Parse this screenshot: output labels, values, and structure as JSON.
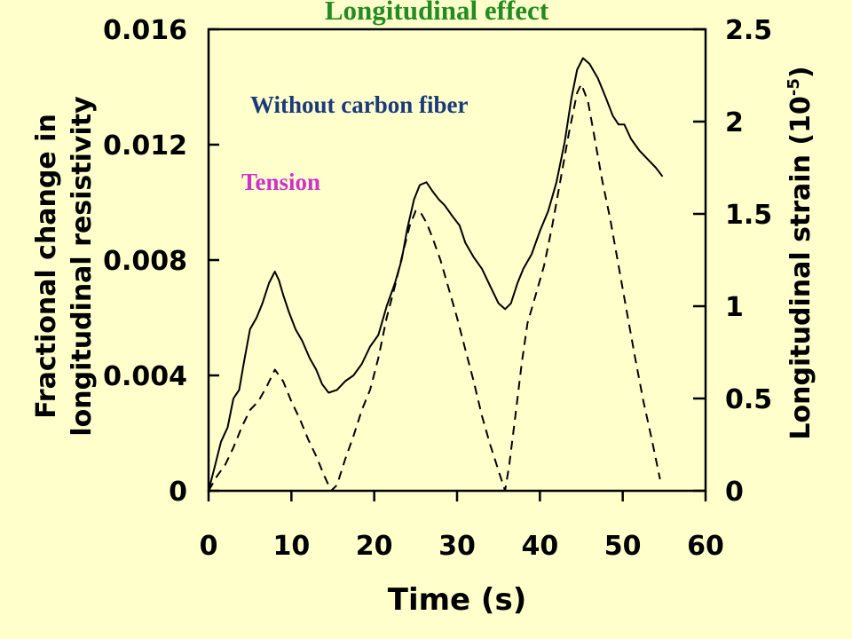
{
  "colors": {
    "background": "#ffffcc",
    "title": "#228b22",
    "subtitle": "#1a3a7a",
    "annotation": "#cc33cc",
    "ink": "#000000"
  },
  "chart_data": {
    "type": "line",
    "title": "Longitudinal effect",
    "subtitle": "Without carbon fiber",
    "annotation": "Tension",
    "xlabel": "Time (s)",
    "ylabel_left_line1": "Fractional change in",
    "ylabel_left_line2": "longitudinal resistivity",
    "ylabel_right_main": "Longitudinal strain (10",
    "ylabel_right_exp": "-5",
    "ylabel_right_close": ")",
    "xlim": [
      0,
      60
    ],
    "ylim_left": [
      0,
      0.016
    ],
    "ylim_right": [
      0,
      2.5
    ],
    "x_ticks": [
      0,
      10,
      20,
      30,
      40,
      50,
      60
    ],
    "x_tick_labels": [
      "0",
      "10",
      "20",
      "30",
      "40",
      "50",
      "60"
    ],
    "y_left_ticks": [
      0,
      0.004,
      0.008,
      0.012,
      0.016
    ],
    "y_left_tick_labels": [
      "0",
      "0.004",
      "0.008",
      "0.012",
      "0.016"
    ],
    "y_right_ticks": [
      0,
      0.5,
      1,
      1.5,
      2,
      2.5
    ],
    "y_right_tick_labels": [
      "0",
      "0.5",
      "1",
      "1.5",
      "2",
      "2.5"
    ],
    "grid": false,
    "series": [
      {
        "axis": "left",
        "style": "solid",
        "x": [
          0,
          0.8,
          1.5,
          2.3,
          3.0,
          3.7,
          4.3,
          5.0,
          5.8,
          6.5,
          7.3,
          8.0,
          8.5,
          9.0,
          9.7,
          10.5,
          11.3,
          12.2,
          13.0,
          13.7,
          14.5,
          15.5,
          16.5,
          17.5,
          18.5,
          19.5,
          20.5,
          21.5,
          22.5,
          23.3,
          24.0,
          24.8,
          25.5,
          26.3,
          27.0,
          27.8,
          28.5,
          29.5,
          30.3,
          31.0,
          32.0,
          33.0,
          34.0,
          35.0,
          35.8,
          36.5,
          37.3,
          38.0,
          39.0,
          40.0,
          41.0,
          42.0,
          43.0,
          43.8,
          44.5,
          45.2,
          46.0,
          47.0,
          48.0,
          48.8,
          49.5,
          50.2,
          51.0,
          52.0,
          53.0,
          54.0,
          54.8
        ],
        "values": [
          0,
          0.0009,
          0.0017,
          0.0022,
          0.0032,
          0.0035,
          0.0045,
          0.0056,
          0.006,
          0.0065,
          0.0072,
          0.0076,
          0.0073,
          0.0068,
          0.0062,
          0.0056,
          0.0052,
          0.0046,
          0.0042,
          0.0037,
          0.0034,
          0.0035,
          0.0038,
          0.004,
          0.0044,
          0.005,
          0.0054,
          0.0064,
          0.0072,
          0.008,
          0.0091,
          0.0101,
          0.0106,
          0.0107,
          0.0104,
          0.0101,
          0.0099,
          0.0095,
          0.0092,
          0.0086,
          0.0081,
          0.0077,
          0.0071,
          0.0065,
          0.0063,
          0.0065,
          0.0072,
          0.0077,
          0.0082,
          0.009,
          0.0097,
          0.0107,
          0.0121,
          0.0136,
          0.0146,
          0.015,
          0.0148,
          0.0143,
          0.0136,
          0.013,
          0.0127,
          0.0127,
          0.0122,
          0.0118,
          0.0115,
          0.0112,
          0.0109
        ]
      },
      {
        "axis": "left",
        "style": "dashed",
        "x": [
          0,
          1.0,
          2.0,
          3.0,
          4.0,
          5.0,
          6.0,
          7.0,
          8.0,
          9.0,
          10.0,
          11.0,
          12.0,
          13.0,
          14.0,
          14.8,
          15.5,
          16.5,
          17.5,
          18.5,
          19.5,
          20.5,
          21.5,
          22.5,
          23.5,
          24.3,
          25.0,
          25.5,
          26.3,
          27.0,
          28.0,
          29.0,
          30.0,
          31.0,
          32.0,
          33.0,
          34.0,
          35.0,
          35.8,
          36.3,
          37.0,
          37.8,
          38.5,
          39.5,
          40.5,
          41.5,
          42.5,
          43.5,
          44.5,
          45.0,
          45.8,
          46.5,
          47.5,
          48.5,
          49.5,
          50.5,
          51.5,
          52.5,
          53.5,
          54.5
        ],
        "values": [
          0,
          0.0005,
          0.0009,
          0.0015,
          0.0022,
          0.0028,
          0.0031,
          0.0036,
          0.0042,
          0.0038,
          0.0031,
          0.0025,
          0.0018,
          0.0012,
          0.0005,
          0,
          0.0002,
          0.0011,
          0.0019,
          0.0028,
          0.0035,
          0.0046,
          0.006,
          0.0071,
          0.0083,
          0.0092,
          0.0097,
          0.0097,
          0.0093,
          0.0088,
          0.008,
          0.007,
          0.006,
          0.0049,
          0.0038,
          0.0026,
          0.0016,
          0.0007,
          0,
          0.0009,
          0.0025,
          0.0044,
          0.0058,
          0.0068,
          0.0078,
          0.0092,
          0.0108,
          0.0124,
          0.0138,
          0.0141,
          0.0135,
          0.0124,
          0.0108,
          0.0094,
          0.0078,
          0.0062,
          0.0046,
          0.0031,
          0.0018,
          0.0004
        ]
      }
    ]
  }
}
